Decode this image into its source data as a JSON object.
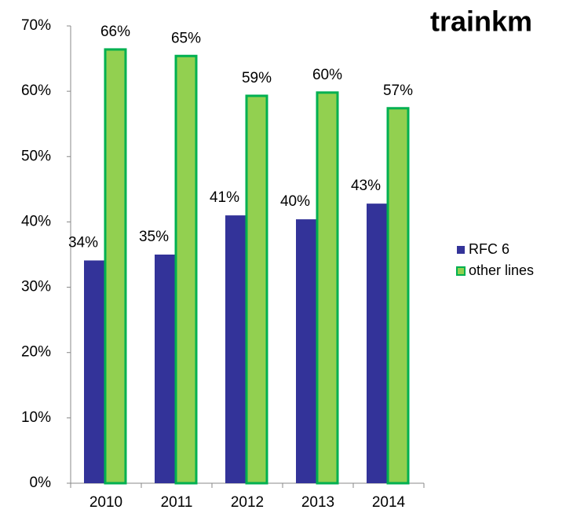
{
  "chart_data": {
    "type": "bar",
    "title": "trainkm",
    "categories": [
      "2010",
      "2011",
      "2012",
      "2013",
      "2014"
    ],
    "series": [
      {
        "name": "RFC 6",
        "color": "#333399",
        "values": [
          34.1,
          35,
          41,
          40.4,
          42.8
        ],
        "value_labels": [
          "34%",
          "35%",
          "41%",
          "40%",
          "43%"
        ]
      },
      {
        "name": "other lines",
        "color": "#92d050",
        "values": [
          66.4,
          65.4,
          59.3,
          59.8,
          57.4
        ],
        "value_labels": [
          "66%",
          "65%",
          "59%",
          "60%",
          "57%"
        ]
      }
    ],
    "ylim": [
      0,
      70
    ],
    "yticks": [
      {
        "value": 0,
        "label": "0%"
      },
      {
        "value": 10,
        "label": "10%"
      },
      {
        "value": 20,
        "label": "20%"
      },
      {
        "value": 30,
        "label": "30%"
      },
      {
        "value": 40,
        "label": "40%"
      },
      {
        "value": 50,
        "label": "50%"
      },
      {
        "value": 60,
        "label": "60%"
      },
      {
        "value": 70,
        "label": "70%"
      }
    ],
    "grid": false,
    "legend": "right"
  }
}
